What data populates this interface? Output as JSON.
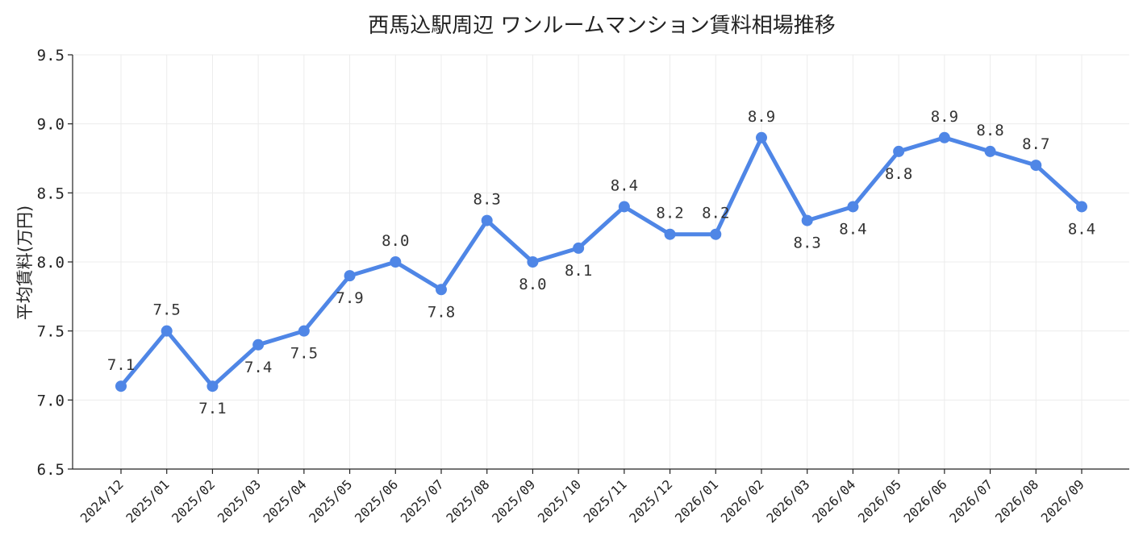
{
  "chart_data": {
    "type": "line",
    "title": "西馬込駅周辺 ワンルームマンション賃料相場推移",
    "xlabel": "",
    "ylabel": "平均賃料(万円)",
    "ylim": [
      6.5,
      9.5
    ],
    "yticks": [
      "6.5",
      "7.0",
      "7.5",
      "8.0",
      "8.5",
      "9.0",
      "9.5"
    ],
    "grid": true,
    "color": "#4f86e6",
    "categories": [
      "2024/12",
      "2025/01",
      "2025/02",
      "2025/03",
      "2025/04",
      "2025/05",
      "2025/06",
      "2025/07",
      "2025/08",
      "2025/09",
      "2025/10",
      "2025/11",
      "2025/12",
      "2026/01",
      "2026/02",
      "2026/03",
      "2026/04",
      "2026/05",
      "2026/06",
      "2026/07",
      "2026/08",
      "2026/09"
    ],
    "series": [
      {
        "values": [
          7.1,
          7.5,
          7.1,
          7.4,
          7.5,
          7.9,
          8.0,
          7.8,
          8.3,
          8.0,
          8.1,
          8.4,
          8.2,
          8.2,
          8.9,
          8.3,
          8.4,
          8.8,
          8.9,
          8.8,
          8.7,
          8.4
        ],
        "labels": [
          "7.1",
          "7.5",
          "7.1",
          "7.4",
          "7.5",
          "7.9",
          "8.0",
          "7.8",
          "8.3",
          "8.0",
          "8.1",
          "8.4",
          "8.2",
          "8.2",
          "8.9",
          "8.3",
          "8.4",
          "8.8",
          "8.9",
          "8.8",
          "8.7",
          "8.4"
        ]
      }
    ]
  }
}
